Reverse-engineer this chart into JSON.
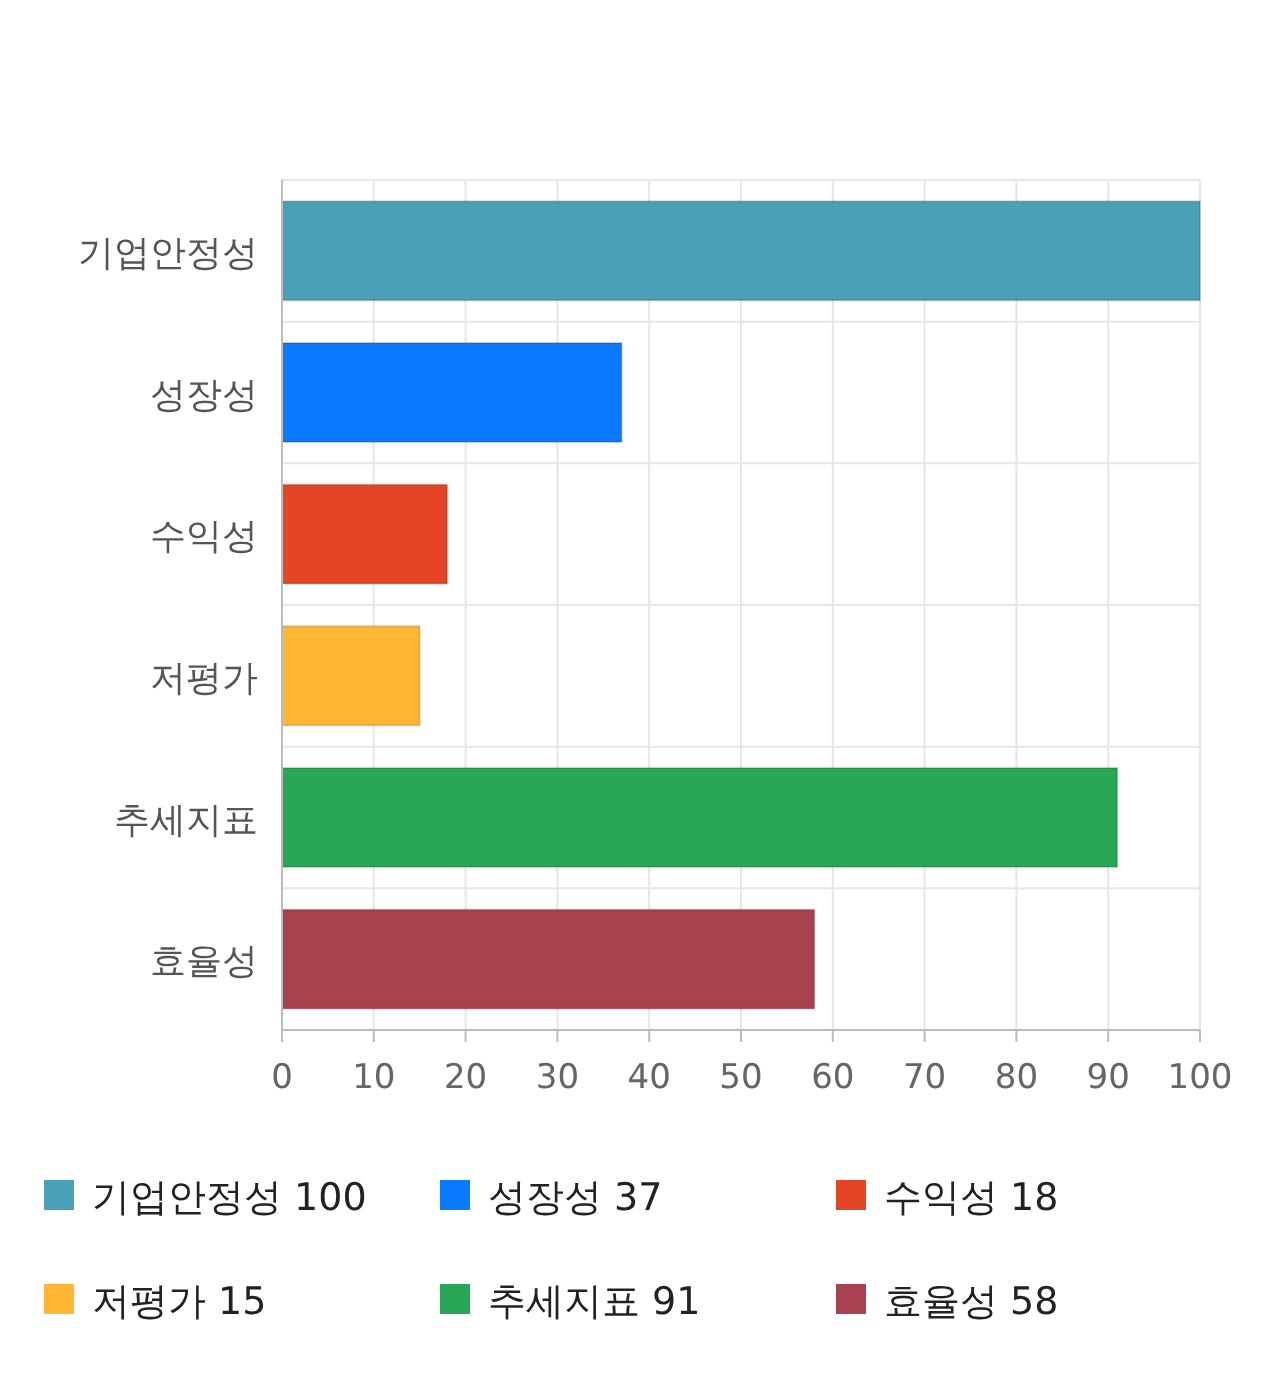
{
  "chart_data": {
    "type": "bar",
    "orientation": "horizontal",
    "stacked": true,
    "categories": [
      "기업안정성",
      "성장성",
      "수익성",
      "저평가",
      "추세지표",
      "효율성"
    ],
    "series": [
      {
        "name": "기업안정성 100",
        "color": "#4aa0b8",
        "values": [
          100,
          null,
          null,
          null,
          null,
          null
        ]
      },
      {
        "name": "성장성 37",
        "color": "#0a7aff",
        "values": [
          null,
          37,
          null,
          null,
          null,
          null
        ]
      },
      {
        "name": "수익성 18",
        "color": "#e34525",
        "values": [
          null,
          null,
          18,
          null,
          null,
          null
        ]
      },
      {
        "name": "저평가 15",
        "color": "#ffb733",
        "values": [
          null,
          null,
          null,
          15,
          null,
          null
        ]
      },
      {
        "name": "추세지표 91",
        "color": "#29a656",
        "values": [
          null,
          null,
          null,
          null,
          91,
          null
        ]
      },
      {
        "name": "효율성 58",
        "color": "#a8424f",
        "values": [
          null,
          null,
          null,
          null,
          null,
          58
        ]
      }
    ],
    "xlim": [
      0,
      100
    ],
    "xticks": [
      0,
      10,
      20,
      30,
      40,
      50,
      60,
      70,
      80,
      90,
      100
    ],
    "grid": true,
    "legend": "bottom"
  }
}
